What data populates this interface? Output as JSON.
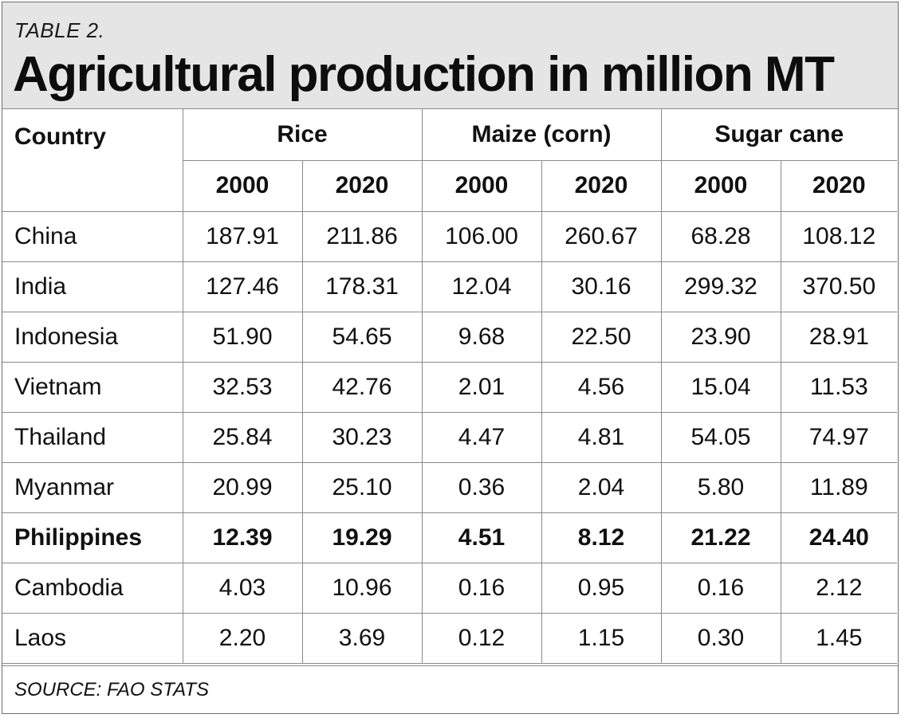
{
  "header": {
    "label": "TABLE 2.",
    "title": "Agricultural production in million MT"
  },
  "source": "SOURCE: FAO STATS",
  "colors": {
    "header_bg": "#e5e5e5",
    "border": "#8a8a8a"
  },
  "chart_data": {
    "type": "table",
    "title": "Agricultural production in million MT",
    "columns": {
      "country": "Country",
      "groups": [
        "Rice",
        "Maize (corn)",
        "Sugar cane"
      ],
      "years": [
        "2000",
        "2020",
        "2000",
        "2020",
        "2000",
        "2020"
      ]
    },
    "rows": [
      {
        "country": "China",
        "values": [
          "187.91",
          "211.86",
          "106.00",
          "260.67",
          "68.28",
          "108.12"
        ],
        "bold": false
      },
      {
        "country": "India",
        "values": [
          "127.46",
          "178.31",
          "12.04",
          "30.16",
          "299.32",
          "370.50"
        ],
        "bold": false
      },
      {
        "country": "Indonesia",
        "values": [
          "51.90",
          "54.65",
          "9.68",
          "22.50",
          "23.90",
          "28.91"
        ],
        "bold": false
      },
      {
        "country": "Vietnam",
        "values": [
          "32.53",
          "42.76",
          "2.01",
          "4.56",
          "15.04",
          "11.53"
        ],
        "bold": false
      },
      {
        "country": "Thailand",
        "values": [
          "25.84",
          "30.23",
          "4.47",
          "4.81",
          "54.05",
          "74.97"
        ],
        "bold": false
      },
      {
        "country": "Myanmar",
        "values": [
          "20.99",
          "25.10",
          "0.36",
          "2.04",
          "5.80",
          "11.89"
        ],
        "bold": false
      },
      {
        "country": "Philippines",
        "values": [
          "12.39",
          "19.29",
          "4.51",
          "8.12",
          "21.22",
          "24.40"
        ],
        "bold": true
      },
      {
        "country": "Cambodia",
        "values": [
          "4.03",
          "10.96",
          "0.16",
          "0.95",
          "0.16",
          "2.12"
        ],
        "bold": false
      },
      {
        "country": "Laos",
        "values": [
          "2.20",
          "3.69",
          "0.12",
          "1.15",
          "0.30",
          "1.45"
        ],
        "bold": false
      }
    ]
  }
}
